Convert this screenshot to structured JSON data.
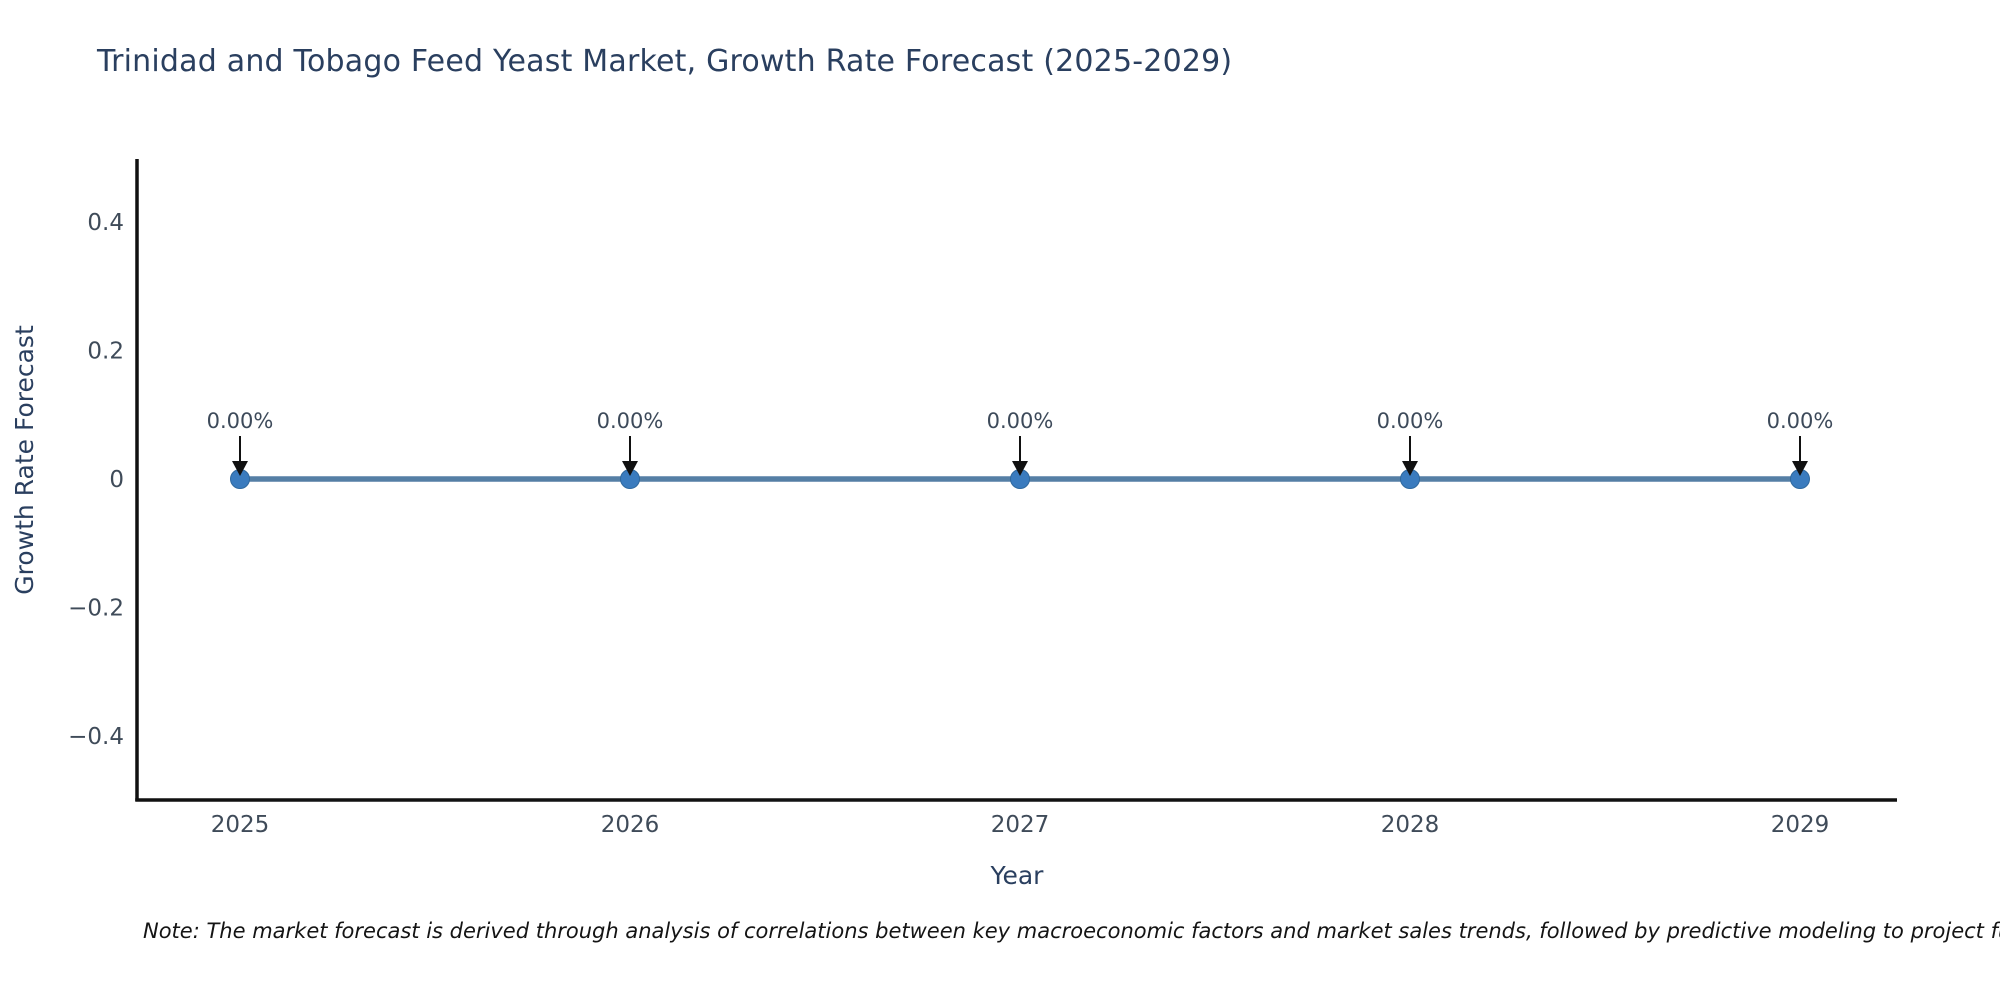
{
  "note": "Note: The market forecast is derived through analysis of correlations between key macroeconomic factors and market sales trends, followed by predictive modeling to project future sales.",
  "chart_data": {
    "type": "line",
    "title": "Trinidad and Tobago Feed Yeast Market, Growth Rate Forecast (2025-2029)",
    "xlabel": "Year",
    "ylabel": "Growth Rate Forecast",
    "x": [
      2025,
      2026,
      2027,
      2028,
      2029
    ],
    "y": [
      0,
      0,
      0,
      0,
      0
    ],
    "point_labels": [
      "0.00%",
      "0.00%",
      "0.00%",
      "0.00%",
      "0.00%"
    ],
    "xtick_labels": [
      "2025",
      "2026",
      "2027",
      "2028",
      "2029"
    ],
    "ytick_labels": [
      "0.4",
      "0.2",
      "0",
      "−0.2",
      "−0.4"
    ],
    "ytick_values": [
      0.4,
      0.2,
      0,
      -0.2,
      -0.4
    ],
    "ylim": [
      -0.5,
      0.5
    ],
    "grid": false,
    "legend": "none",
    "marker_style": "circle",
    "annotation_arrow": "down",
    "colors": {
      "line": "#557fa5",
      "marker": "#3a7bbe",
      "marker_edge": "#2e689e",
      "axis_line": "#111111",
      "tick_text": "#3f4b59",
      "title_text": "#2a3f5f",
      "annotation_text": "#3d4a5a",
      "annotation_arrow": "#111111",
      "note_text": "#141414",
      "background": "#ffffff"
    }
  }
}
